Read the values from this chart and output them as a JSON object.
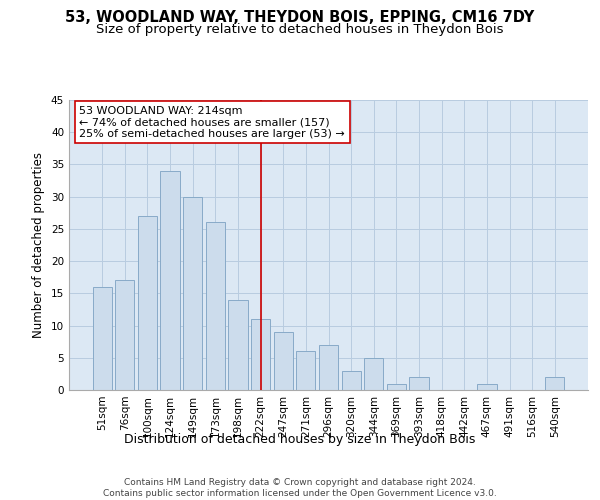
{
  "title": "53, WOODLAND WAY, THEYDON BOIS, EPPING, CM16 7DY",
  "subtitle": "Size of property relative to detached houses in Theydon Bois",
  "xlabel": "Distribution of detached houses by size in Theydon Bois",
  "ylabel": "Number of detached properties",
  "categories": [
    "51sqm",
    "76sqm",
    "100sqm",
    "124sqm",
    "149sqm",
    "173sqm",
    "198sqm",
    "222sqm",
    "247sqm",
    "271sqm",
    "296sqm",
    "320sqm",
    "344sqm",
    "369sqm",
    "393sqm",
    "418sqm",
    "442sqm",
    "467sqm",
    "491sqm",
    "516sqm",
    "540sqm"
  ],
  "values": [
    16,
    17,
    27,
    34,
    30,
    26,
    14,
    11,
    9,
    6,
    7,
    3,
    5,
    1,
    2,
    0,
    0,
    1,
    0,
    0,
    2
  ],
  "bar_color": "#ccdcec",
  "bar_edge_color": "#88aac8",
  "grid_color": "#b8cce0",
  "background_color": "#dce8f4",
  "vline_x": 7,
  "vline_color": "#cc0000",
  "annotation_text": "53 WOODLAND WAY: 214sqm\n← 74% of detached houses are smaller (157)\n25% of semi-detached houses are larger (53) →",
  "annotation_box_color": "#ffffff",
  "annotation_box_edge": "#cc0000",
  "ylim": [
    0,
    45
  ],
  "yticks": [
    0,
    5,
    10,
    15,
    20,
    25,
    30,
    35,
    40,
    45
  ],
  "footer": "Contains HM Land Registry data © Crown copyright and database right 2024.\nContains public sector information licensed under the Open Government Licence v3.0.",
  "title_fontsize": 10.5,
  "subtitle_fontsize": 9.5,
  "xlabel_fontsize": 9,
  "ylabel_fontsize": 8.5,
  "tick_fontsize": 7.5,
  "annotation_fontsize": 8,
  "footer_fontsize": 6.5
}
